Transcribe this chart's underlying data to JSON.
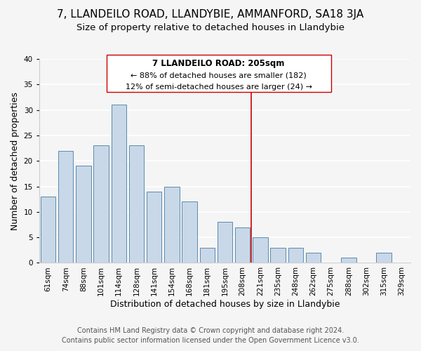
{
  "title": "7, LLANDEILO ROAD, LLANDYBIE, AMMANFORD, SA18 3JA",
  "subtitle": "Size of property relative to detached houses in Llandybie",
  "xlabel": "Distribution of detached houses by size in Llandybie",
  "ylabel": "Number of detached properties",
  "footer_line1": "Contains HM Land Registry data © Crown copyright and database right 2024.",
  "footer_line2": "Contains public sector information licensed under the Open Government Licence v3.0.",
  "annotation_title": "7 LLANDEILO ROAD: 205sqm",
  "annotation_line1": "← 88% of detached houses are smaller (182)",
  "annotation_line2": "12% of semi-detached houses are larger (24) →",
  "bar_labels": [
    "61sqm",
    "74sqm",
    "88sqm",
    "101sqm",
    "114sqm",
    "128sqm",
    "141sqm",
    "154sqm",
    "168sqm",
    "181sqm",
    "195sqm",
    "208sqm",
    "221sqm",
    "235sqm",
    "248sqm",
    "262sqm",
    "275sqm",
    "288sqm",
    "302sqm",
    "315sqm",
    "329sqm"
  ],
  "bar_values": [
    13,
    22,
    19,
    23,
    31,
    23,
    14,
    15,
    12,
    3,
    8,
    7,
    5,
    3,
    3,
    2,
    0,
    1,
    0,
    2,
    0
  ],
  "bar_color": "#c8d8e8",
  "bar_edge_color": "#5a8ab0",
  "vline_x": 11.5,
  "vline_color": "#cc0000",
  "ylim": [
    0,
    40
  ],
  "yticks": [
    0,
    5,
    10,
    15,
    20,
    25,
    30,
    35,
    40
  ],
  "background_color": "#f5f5f5",
  "grid_color": "#ffffff",
  "annotation_box_color": "#ffffff",
  "annotation_box_edge": "#cc0000",
  "title_fontsize": 11,
  "subtitle_fontsize": 9.5,
  "axis_label_fontsize": 9,
  "tick_fontsize": 7.5,
  "annotation_fontsize": 8.5,
  "footer_fontsize": 7
}
